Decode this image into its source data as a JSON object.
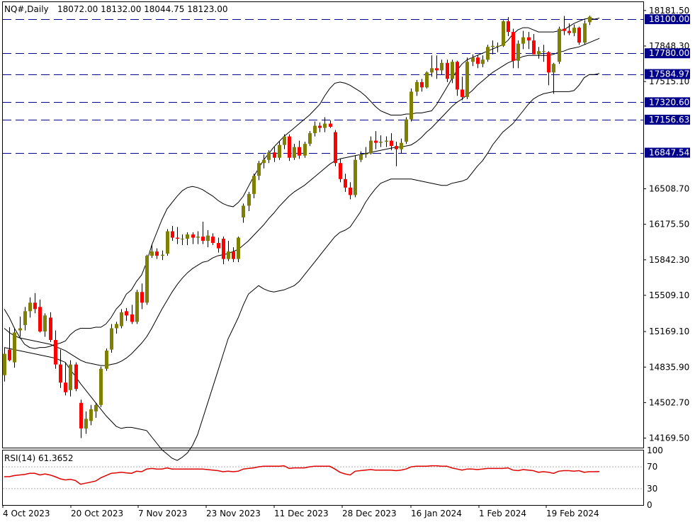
{
  "header": {
    "symbol_timeframe": "NQ#,Daily",
    "ohlc": "18072.00 18132.00 18044.75 18123.00"
  },
  "rsi_header": {
    "label": "RSI(14) 61.3652"
  },
  "colors": {
    "bull": "#808000",
    "bear": "#ff0000",
    "wick": "#000000",
    "band": "#000000",
    "level_line": "#00008b",
    "level_box": "#00008b",
    "rsi_line": "#e00000",
    "rsi_level": "#b0b0b0"
  },
  "chart_data": {
    "type": "candlestick",
    "title": "NQ#,Daily",
    "price_axis_ticks": [
      "18181.50",
      "17848.30",
      "17515.10",
      "16508.70",
      "16175.50",
      "15842.30",
      "15509.10",
      "15169.10",
      "14835.90",
      "14502.70",
      "14169.50"
    ],
    "price_range": [
      14080,
      18260
    ],
    "date_labels": [
      "4 Oct 2023",
      "20 Oct 2023",
      "7 Nov 2023",
      "23 Nov 2023",
      "11 Dec 2023",
      "28 Dec 2023",
      "16 Jan 2024",
      "1 Feb 2024",
      "19 Feb 2024"
    ],
    "horizontal_levels": [
      {
        "label": "18100.00",
        "value": 18100
      },
      {
        "label": "17780.00",
        "value": 17780
      },
      {
        "label": "17584.97",
        "value": 17584.97
      },
      {
        "label": "17320.60",
        "value": 17320.6
      },
      {
        "label": "17156.63",
        "value": 17156.63
      },
      {
        "label": "16847.54",
        "value": 16847.54
      }
    ],
    "candles": [
      {
        "o": 14760,
        "h": 15020,
        "l": 14700,
        "c": 14960
      },
      {
        "o": 15000,
        "h": 15210,
        "l": 14890,
        "c": 14900
      },
      {
        "o": 14880,
        "h": 15200,
        "l": 14830,
        "c": 15160
      },
      {
        "o": 15180,
        "h": 15310,
        "l": 15120,
        "c": 15200
      },
      {
        "o": 15230,
        "h": 15400,
        "l": 15180,
        "c": 15360
      },
      {
        "o": 15360,
        "h": 15490,
        "l": 15300,
        "c": 15440
      },
      {
        "o": 15440,
        "h": 15530,
        "l": 15340,
        "c": 15380
      },
      {
        "o": 15400,
        "h": 15470,
        "l": 15160,
        "c": 15170
      },
      {
        "o": 15170,
        "h": 15340,
        "l": 15120,
        "c": 15320
      },
      {
        "o": 15300,
        "h": 15350,
        "l": 15070,
        "c": 15090
      },
      {
        "o": 15090,
        "h": 15180,
        "l": 14820,
        "c": 14860
      },
      {
        "o": 14860,
        "h": 15000,
        "l": 14640,
        "c": 14690
      },
      {
        "o": 14690,
        "h": 14880,
        "l": 14570,
        "c": 14600
      },
      {
        "o": 14620,
        "h": 14900,
        "l": 14560,
        "c": 14860
      },
      {
        "o": 14860,
        "h": 14880,
        "l": 14610,
        "c": 14630
      },
      {
        "o": 14500,
        "h": 14530,
        "l": 14170,
        "c": 14260
      },
      {
        "o": 14260,
        "h": 14420,
        "l": 14210,
        "c": 14350
      },
      {
        "o": 14330,
        "h": 14480,
        "l": 14290,
        "c": 14440
      },
      {
        "o": 14420,
        "h": 14500,
        "l": 14360,
        "c": 14480
      },
      {
        "o": 14480,
        "h": 14840,
        "l": 14460,
        "c": 14820
      },
      {
        "o": 14820,
        "h": 15010,
        "l": 14800,
        "c": 14990
      },
      {
        "o": 15000,
        "h": 15240,
        "l": 14970,
        "c": 15200
      },
      {
        "o": 15200,
        "h": 15260,
        "l": 15150,
        "c": 15240
      },
      {
        "o": 15220,
        "h": 15380,
        "l": 15200,
        "c": 15350
      },
      {
        "o": 15360,
        "h": 15390,
        "l": 15270,
        "c": 15320
      },
      {
        "o": 15330,
        "h": 15420,
        "l": 15240,
        "c": 15260
      },
      {
        "o": 15260,
        "h": 15560,
        "l": 15240,
        "c": 15540
      },
      {
        "o": 15540,
        "h": 15620,
        "l": 15380,
        "c": 15440
      },
      {
        "o": 15440,
        "h": 15890,
        "l": 15420,
        "c": 15880
      },
      {
        "o": 15880,
        "h": 15990,
        "l": 15860,
        "c": 15920
      },
      {
        "o": 15920,
        "h": 15950,
        "l": 15850,
        "c": 15880
      },
      {
        "o": 15880,
        "h": 15930,
        "l": 15840,
        "c": 15890
      },
      {
        "o": 15900,
        "h": 16130,
        "l": 15880,
        "c": 16110
      },
      {
        "o": 16110,
        "h": 16160,
        "l": 16020,
        "c": 16050
      },
      {
        "o": 16050,
        "h": 16150,
        "l": 15990,
        "c": 16040
      },
      {
        "o": 16040,
        "h": 16080,
        "l": 15980,
        "c": 16040
      },
      {
        "o": 16040,
        "h": 16100,
        "l": 15980,
        "c": 16080
      },
      {
        "o": 16080,
        "h": 16100,
        "l": 15990,
        "c": 16050
      },
      {
        "o": 16050,
        "h": 16110,
        "l": 15990,
        "c": 16060
      },
      {
        "o": 16060,
        "h": 16200,
        "l": 15990,
        "c": 16020
      },
      {
        "o": 16020,
        "h": 16120,
        "l": 15960,
        "c": 16070
      },
      {
        "o": 16060,
        "h": 16090,
        "l": 15980,
        "c": 16000
      },
      {
        "o": 16000,
        "h": 16050,
        "l": 15910,
        "c": 15950
      },
      {
        "o": 16040,
        "h": 16060,
        "l": 15800,
        "c": 15850
      },
      {
        "o": 15850,
        "h": 16020,
        "l": 15830,
        "c": 15920
      },
      {
        "o": 15920,
        "h": 15960,
        "l": 15820,
        "c": 15850
      },
      {
        "o": 15850,
        "h": 16060,
        "l": 15820,
        "c": 16050
      },
      {
        "o": 16240,
        "h": 16370,
        "l": 16190,
        "c": 16350
      },
      {
        "o": 16350,
        "h": 16480,
        "l": 16300,
        "c": 16460
      },
      {
        "o": 16460,
        "h": 16650,
        "l": 16420,
        "c": 16630
      },
      {
        "o": 16630,
        "h": 16770,
        "l": 16590,
        "c": 16750
      },
      {
        "o": 16750,
        "h": 16830,
        "l": 16700,
        "c": 16780
      },
      {
        "o": 16780,
        "h": 16870,
        "l": 16750,
        "c": 16850
      },
      {
        "o": 16850,
        "h": 16900,
        "l": 16760,
        "c": 16800
      },
      {
        "o": 16800,
        "h": 16950,
        "l": 16780,
        "c": 16920
      },
      {
        "o": 16920,
        "h": 17020,
        "l": 16880,
        "c": 17000
      },
      {
        "o": 17000,
        "h": 17020,
        "l": 16770,
        "c": 16800
      },
      {
        "o": 16800,
        "h": 16930,
        "l": 16780,
        "c": 16900
      },
      {
        "o": 16900,
        "h": 16960,
        "l": 16790,
        "c": 16820
      },
      {
        "o": 16820,
        "h": 16950,
        "l": 16800,
        "c": 16930
      },
      {
        "o": 16930,
        "h": 17050,
        "l": 16910,
        "c": 17030
      },
      {
        "o": 17030,
        "h": 17140,
        "l": 17000,
        "c": 17100
      },
      {
        "o": 17100,
        "h": 17130,
        "l": 17040,
        "c": 17080
      },
      {
        "o": 17080,
        "h": 17180,
        "l": 17040,
        "c": 17120
      },
      {
        "o": 17120,
        "h": 17150,
        "l": 17080,
        "c": 17090
      },
      {
        "o": 17040,
        "h": 17060,
        "l": 16720,
        "c": 16750
      },
      {
        "o": 16750,
        "h": 16790,
        "l": 16570,
        "c": 16600
      },
      {
        "o": 16600,
        "h": 16650,
        "l": 16480,
        "c": 16520
      },
      {
        "o": 16520,
        "h": 16570,
        "l": 16410,
        "c": 16450
      },
      {
        "o": 16450,
        "h": 16820,
        "l": 16430,
        "c": 16780
      },
      {
        "o": 16780,
        "h": 16860,
        "l": 16760,
        "c": 16830
      },
      {
        "o": 16830,
        "h": 16900,
        "l": 16800,
        "c": 16840
      },
      {
        "o": 16840,
        "h": 17000,
        "l": 16830,
        "c": 16960
      },
      {
        "o": 16960,
        "h": 17050,
        "l": 16880,
        "c": 16940
      },
      {
        "o": 16940,
        "h": 17010,
        "l": 16900,
        "c": 16950
      },
      {
        "o": 16950,
        "h": 17000,
        "l": 16900,
        "c": 16960
      },
      {
        "o": 16960,
        "h": 17030,
        "l": 16870,
        "c": 16910
      },
      {
        "o": 16910,
        "h": 16950,
        "l": 16720,
        "c": 16880
      },
      {
        "o": 16880,
        "h": 16980,
        "l": 16840,
        "c": 16940
      },
      {
        "o": 16950,
        "h": 17180,
        "l": 16930,
        "c": 17160
      },
      {
        "o": 17160,
        "h": 17450,
        "l": 17140,
        "c": 17420
      },
      {
        "o": 17420,
        "h": 17530,
        "l": 17380,
        "c": 17510
      },
      {
        "o": 17510,
        "h": 17540,
        "l": 17420,
        "c": 17460
      },
      {
        "o": 17460,
        "h": 17610,
        "l": 17450,
        "c": 17600
      },
      {
        "o": 17600,
        "h": 17760,
        "l": 17560,
        "c": 17640
      },
      {
        "o": 17640,
        "h": 17760,
        "l": 17540,
        "c": 17620
      },
      {
        "o": 17620,
        "h": 17720,
        "l": 17580,
        "c": 17690
      },
      {
        "o": 17690,
        "h": 17720,
        "l": 17510,
        "c": 17540
      },
      {
        "o": 17540,
        "h": 17720,
        "l": 17500,
        "c": 17700
      },
      {
        "o": 17700,
        "h": 17710,
        "l": 17380,
        "c": 17440
      },
      {
        "o": 17440,
        "h": 17560,
        "l": 17340,
        "c": 17370
      },
      {
        "o": 17370,
        "h": 17740,
        "l": 17350,
        "c": 17700
      },
      {
        "o": 17700,
        "h": 17770,
        "l": 17660,
        "c": 17740
      },
      {
        "o": 17740,
        "h": 17760,
        "l": 17640,
        "c": 17680
      },
      {
        "o": 17680,
        "h": 17760,
        "l": 17650,
        "c": 17720
      },
      {
        "o": 17720,
        "h": 17860,
        "l": 17700,
        "c": 17840
      },
      {
        "o": 17840,
        "h": 17900,
        "l": 17770,
        "c": 17850
      },
      {
        "o": 17850,
        "h": 17880,
        "l": 17790,
        "c": 17850
      },
      {
        "o": 17850,
        "h": 18090,
        "l": 17840,
        "c": 18080
      },
      {
        "o": 18080,
        "h": 18120,
        "l": 17940,
        "c": 17980
      },
      {
        "o": 17980,
        "h": 18010,
        "l": 17640,
        "c": 17710
      },
      {
        "o": 17710,
        "h": 17900,
        "l": 17640,
        "c": 17870
      },
      {
        "o": 17870,
        "h": 17990,
        "l": 17820,
        "c": 17930
      },
      {
        "o": 17930,
        "h": 17980,
        "l": 17820,
        "c": 17900
      },
      {
        "o": 17900,
        "h": 17960,
        "l": 17770,
        "c": 17770
      },
      {
        "o": 17770,
        "h": 17840,
        "l": 17730,
        "c": 17800
      },
      {
        "o": 17800,
        "h": 17860,
        "l": 17700,
        "c": 17800
      },
      {
        "o": 17790,
        "h": 17800,
        "l": 17480,
        "c": 17600
      },
      {
        "o": 17600,
        "h": 17690,
        "l": 17400,
        "c": 17680
      },
      {
        "o": 17700,
        "h": 18030,
        "l": 17680,
        "c": 18010
      },
      {
        "o": 18010,
        "h": 18130,
        "l": 17950,
        "c": 17990
      },
      {
        "o": 17990,
        "h": 18060,
        "l": 17950,
        "c": 17970
      },
      {
        "o": 17970,
        "h": 18050,
        "l": 17940,
        "c": 18020
      },
      {
        "o": 18020,
        "h": 18030,
        "l": 17860,
        "c": 17880
      },
      {
        "o": 17880,
        "h": 18090,
        "l": 17860,
        "c": 18060
      },
      {
        "o": 18072,
        "h": 18132,
        "l": 18044.75,
        "c": 18123
      }
    ],
    "bollinger": {
      "upper": [
        15380,
        15300,
        15200,
        15120,
        15050,
        15020,
        15010,
        15020,
        15020,
        15030,
        15050,
        15060,
        15080,
        15140,
        15180,
        15200,
        15200,
        15200,
        15210,
        15210,
        15240,
        15300,
        15380,
        15430,
        15520,
        15560,
        15640,
        15700,
        15820,
        15980,
        16100,
        16220,
        16320,
        16380,
        16440,
        16490,
        16520,
        16530,
        16520,
        16500,
        16470,
        16440,
        16400,
        16370,
        16350,
        16340,
        16380,
        16440,
        16530,
        16620,
        16700,
        16780,
        16840,
        16900,
        16950,
        17000,
        17040,
        17080,
        17120,
        17160,
        17200,
        17250,
        17300,
        17380,
        17450,
        17500,
        17510,
        17500,
        17480,
        17450,
        17420,
        17380,
        17330,
        17280,
        17240,
        17220,
        17200,
        17200,
        17200,
        17210,
        17210,
        17220,
        17220,
        17230,
        17240,
        17300,
        17380,
        17460,
        17540,
        17620,
        17680,
        17720,
        17740,
        17760,
        17780,
        17800,
        17820,
        17840,
        17860,
        17900,
        17960,
        18000,
        18020,
        18020,
        18000,
        17980,
        17980,
        17980,
        17980,
        17990,
        18000,
        18030,
        18060,
        18080,
        18100,
        18110,
        18100,
        18110
      ],
      "middle": [
        15200,
        15160,
        15130,
        15110,
        15100,
        15090,
        15080,
        15070,
        15060,
        15050,
        15030,
        15010,
        14990,
        14960,
        14930,
        14900,
        14880,
        14870,
        14860,
        14850,
        14850,
        14860,
        14870,
        14890,
        14920,
        14960,
        15010,
        15060,
        15120,
        15200,
        15290,
        15380,
        15460,
        15540,
        15610,
        15670,
        15720,
        15760,
        15790,
        15820,
        15830,
        15860,
        15880,
        15890,
        15900,
        15920,
        15940,
        15980,
        16020,
        16070,
        16120,
        16170,
        16230,
        16280,
        16340,
        16390,
        16440,
        16480,
        16510,
        16540,
        16580,
        16620,
        16660,
        16700,
        16740,
        16770,
        16790,
        16800,
        16810,
        16820,
        16830,
        16840,
        16850,
        16860,
        16870,
        16880,
        16890,
        16900,
        16900,
        16910,
        16920,
        16950,
        16990,
        17040,
        17080,
        17130,
        17180,
        17230,
        17280,
        17320,
        17350,
        17390,
        17430,
        17480,
        17520,
        17560,
        17600,
        17630,
        17660,
        17690,
        17710,
        17730,
        17750,
        17760,
        17760,
        17760,
        17760,
        17760,
        17770,
        17790,
        17800,
        17820,
        17830,
        17840,
        17860,
        17880,
        17900,
        17920
      ],
      "lower": [
        15020,
        15010,
        15000,
        14990,
        14980,
        14970,
        14960,
        14950,
        14940,
        14930,
        14920,
        14900,
        14880,
        14810,
        14750,
        14680,
        14620,
        14560,
        14500,
        14440,
        14380,
        14330,
        14280,
        14260,
        14270,
        14270,
        14260,
        14250,
        14240,
        14180,
        14120,
        14060,
        14020,
        13980,
        13960,
        13990,
        14030,
        14100,
        14200,
        14350,
        14500,
        14650,
        14800,
        14950,
        15100,
        15200,
        15300,
        15420,
        15520,
        15560,
        15600,
        15570,
        15550,
        15540,
        15550,
        15560,
        15580,
        15600,
        15640,
        15700,
        15760,
        15820,
        15880,
        15940,
        16000,
        16060,
        16100,
        16120,
        16150,
        16220,
        16290,
        16380,
        16450,
        16510,
        16560,
        16580,
        16600,
        16600,
        16600,
        16600,
        16600,
        16590,
        16580,
        16570,
        16560,
        16550,
        16540,
        16540,
        16560,
        16570,
        16580,
        16600,
        16660,
        16720,
        16770,
        16840,
        16920,
        16980,
        17040,
        17080,
        17120,
        17180,
        17240,
        17300,
        17350,
        17380,
        17400,
        17410,
        17420,
        17420,
        17420,
        17420,
        17430,
        17480,
        17550,
        17580,
        17580,
        17590
      ]
    },
    "rsi": {
      "name": "RSI(14)",
      "last": 61.3652,
      "levels": [
        70,
        30
      ],
      "axis_ticks": [
        "100",
        "70",
        "30",
        "0"
      ],
      "values": [
        52,
        52,
        54,
        55,
        56,
        58,
        58,
        55,
        57,
        55,
        52,
        48,
        46,
        47,
        45,
        38,
        40,
        42,
        44,
        50,
        54,
        58,
        59,
        60,
        59,
        58,
        62,
        61,
        66,
        67,
        66,
        66,
        68,
        66,
        66,
        66,
        66,
        66,
        66,
        66,
        65,
        64,
        63,
        61,
        62,
        61,
        62,
        66,
        67,
        68,
        70,
        71,
        71,
        71,
        71,
        72,
        67,
        68,
        68,
        68,
        70,
        71,
        71,
        71,
        71,
        66,
        60,
        57,
        55,
        62,
        63,
        64,
        65,
        64,
        64,
        64,
        64,
        63,
        64,
        66,
        70,
        71,
        71,
        71,
        72,
        72,
        71,
        71,
        68,
        66,
        64,
        66,
        66,
        65,
        66,
        67,
        67,
        67,
        67,
        68,
        64,
        63,
        65,
        64,
        63,
        60,
        61,
        60,
        58,
        62,
        63,
        63,
        62,
        63,
        60,
        61,
        61,
        61.4
      ]
    }
  }
}
